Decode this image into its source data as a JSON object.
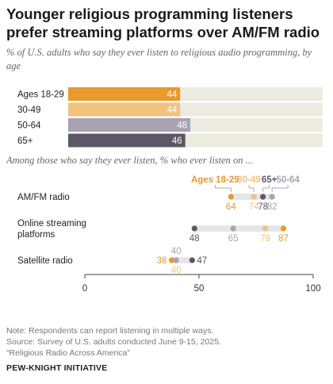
{
  "title": "Younger religious programming listeners prefer streaming platforms over AM/FM radio",
  "subtitle": "% of U.S. adults who say they ever listen to religious audio programming, by age",
  "subtitle2": "Among those who say they ever listen, % who ever listen on ...",
  "notes": [
    "Note: Respondents can report listening in multiple ways.",
    "Source: Survey of U.S. adults conducted June 9-15, 2025.",
    "“Religious Radio Across America”"
  ],
  "source_label": "PEW-KNIGHT INITIATIVE",
  "colors": {
    "ages_18_29": "#e89a2c",
    "ages_30_49": "#f2c27e",
    "ages_50_64": "#a8a2b3",
    "ages_65_plus": "#5c5666",
    "bar_bg": "#ecebe0",
    "range_bg": "#e6e6e6"
  },
  "chart_data": [
    {
      "type": "bar",
      "orientation": "horizontal",
      "categories": [
        "Ages 18-29",
        "30-49",
        "50-64",
        "65+"
      ],
      "values": [
        44,
        44,
        48,
        46
      ],
      "xlim": [
        0,
        100
      ]
    },
    {
      "type": "scatter",
      "subtype": "dot-plot",
      "categories": [
        "AM/FM radio",
        "Online streaming platforms",
        "Satellite radio"
      ],
      "series": [
        {
          "name": "Ages 18-29",
          "values": [
            64,
            87,
            38
          ]
        },
        {
          "name": "30-49",
          "values": [
            74,
            79,
            40
          ]
        },
        {
          "name": "65+",
          "values": [
            78,
            48,
            47
          ]
        },
        {
          "name": "50-64",
          "values": [
            82,
            65,
            40
          ]
        }
      ],
      "xlim": [
        0,
        100
      ],
      "xticks": [
        0,
        50,
        100
      ],
      "legend_placement": "top"
    }
  ]
}
